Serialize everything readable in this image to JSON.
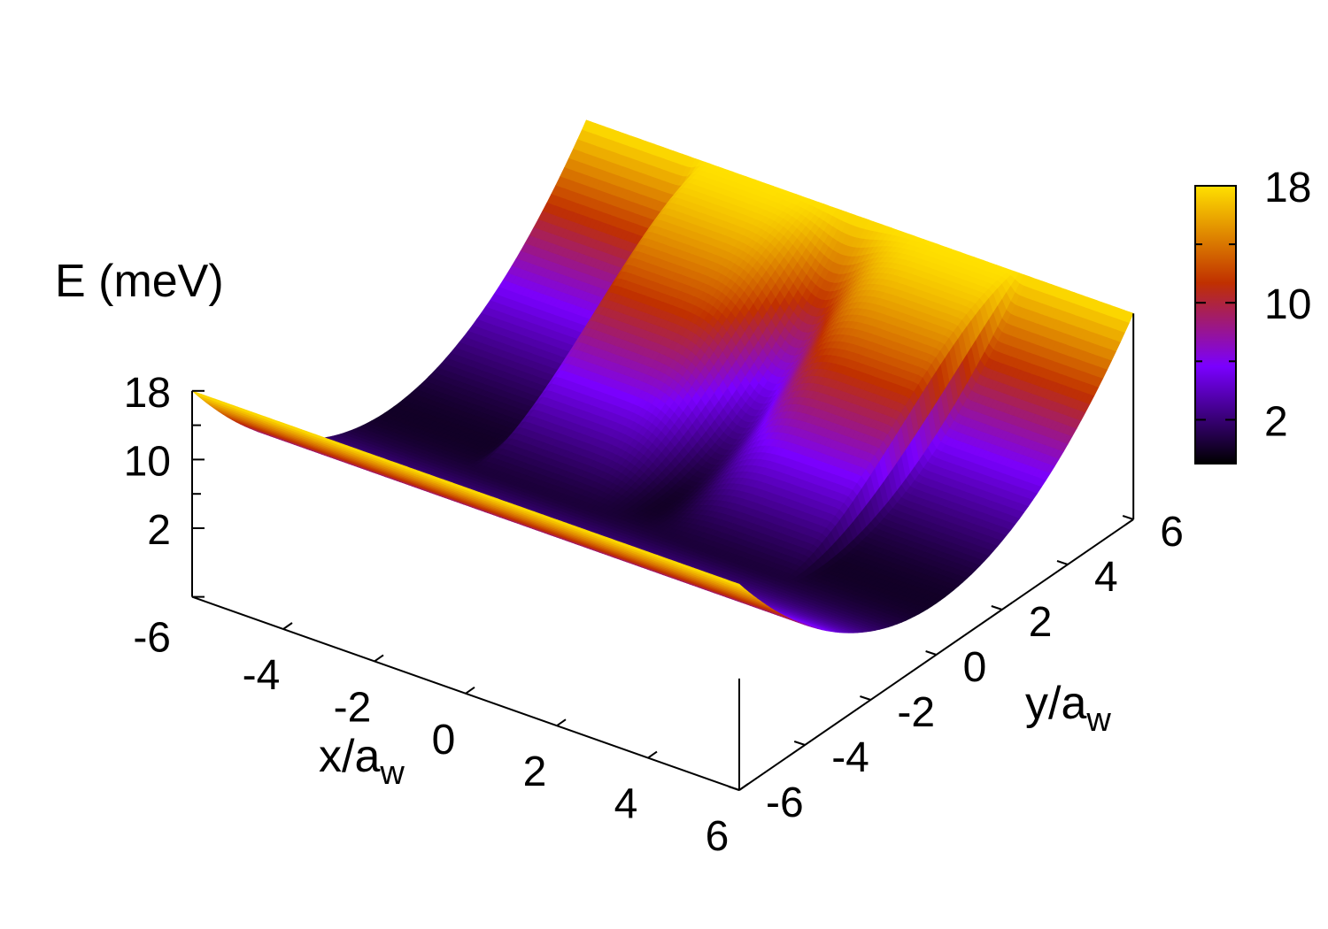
{
  "chart_data": {
    "type": "surface",
    "zlabel": "E (meV)",
    "xlabel_main": "x/a",
    "xlabel_sub": "w",
    "ylabel_main": "y/a",
    "ylabel_sub": "w",
    "x_range": [
      -6,
      6
    ],
    "y_range": [
      -6,
      6
    ],
    "z_range": [
      -6,
      18
    ],
    "x_ticks": [
      "-4",
      "-2",
      "0",
      "2",
      "4",
      "6"
    ],
    "y_ticks": [
      "-6",
      "-4",
      "-2",
      "0",
      "2",
      "4",
      "6"
    ],
    "z_ticks": [
      "18",
      "10",
      "2",
      "-6"
    ],
    "colorbar_ticks": [
      "18",
      "10",
      "2"
    ],
    "colorbar_range": [
      -1,
      18
    ],
    "colormap": [
      "#000000",
      "#7a00ff",
      "#c03000",
      "#ffe000"
    ],
    "surface": {
      "description_y_profile_on_back_edge_x6": "parabolic confinement E ≈ 18 at y=±6, minimum ≈ 0 at y=0",
      "barrier_x_range": [
        -3.5,
        3.5
      ],
      "barrier_peak_E": 18,
      "barrier_dip_x": 0,
      "barrier_dip_E": 0
    }
  }
}
